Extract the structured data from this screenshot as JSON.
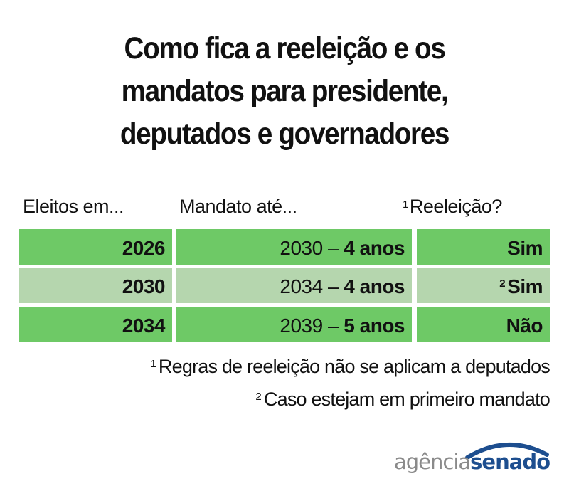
{
  "title": {
    "line1": "Como fica a reeleição e os",
    "line2": "mandatos para presidente,",
    "line3": "deputados e governadores"
  },
  "headers": {
    "col1": "Eleitos em...",
    "col2": "Mandato até...",
    "col3_sup": "1",
    "col3": "Reeleição?"
  },
  "rows": [
    {
      "elected": "2026",
      "until_year": "2030 –",
      "until_term": "4 anos",
      "sup": "",
      "reelection": "Sim",
      "color": "#6ec966"
    },
    {
      "elected": "2030",
      "until_year": "2034 –",
      "until_term": "4 anos",
      "sup": "2",
      "reelection": "Sim",
      "color": "#b5d6ae"
    },
    {
      "elected": "2034",
      "until_year": "2039 –",
      "until_term": "5 anos",
      "sup": "",
      "reelection": "Não",
      "color": "#6ec966"
    }
  ],
  "notes": [
    {
      "sup": "1",
      "text": "Regras de reeleição não se aplicam a deputados"
    },
    {
      "sup": "2",
      "text": "Caso estejam em primeiro mandato"
    }
  ],
  "logo": {
    "part1": "agência",
    "part2": "senado",
    "arc_color": "#1d4e8f"
  }
}
